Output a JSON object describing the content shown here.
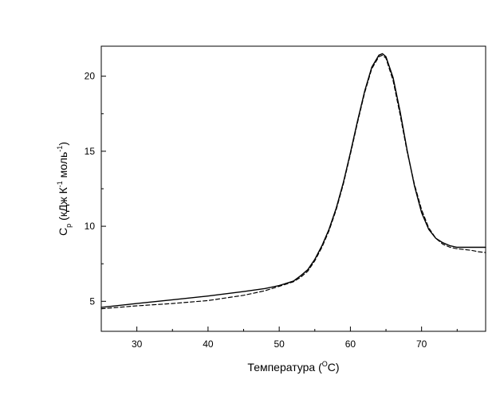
{
  "chart_data": {
    "type": "line",
    "xlabel": "Температура (",
    "xlabel_sup": "O",
    "xlabel_tail": "C)",
    "ylabel_main": "C",
    "ylabel_sub": "p",
    "ylabel_mid": " (кДж К",
    "ylabel_sup1": "-1",
    "ylabel_mid2": " моль",
    "ylabel_sup2": "-1",
    "ylabel_end": ")",
    "xlim": [
      25,
      79
    ],
    "ylim": [
      3.0,
      22.0
    ],
    "x_ticks": [
      30,
      40,
      50,
      60,
      70
    ],
    "y_ticks": [
      5,
      10,
      15,
      20
    ],
    "grid": false,
    "series": [
      {
        "style": "solid",
        "color": "#000000",
        "x": [
          25,
          30,
          35,
          40,
          45,
          48,
          50,
          52,
          53,
          54,
          55,
          56,
          57,
          58,
          59,
          60,
          61,
          62,
          63,
          64,
          64.5,
          65,
          66,
          67,
          68,
          69,
          70,
          71,
          72,
          73,
          74,
          75,
          76,
          77,
          78,
          79
        ],
        "y": [
          4.6,
          4.85,
          5.1,
          5.35,
          5.65,
          5.85,
          6.05,
          6.35,
          6.7,
          7.1,
          7.8,
          8.7,
          9.8,
          11.2,
          12.9,
          14.9,
          17.0,
          19.0,
          20.6,
          21.4,
          21.5,
          21.3,
          19.9,
          17.6,
          15.0,
          12.7,
          10.9,
          9.8,
          9.2,
          8.9,
          8.7,
          8.6,
          8.6,
          8.6,
          8.6,
          8.6
        ]
      },
      {
        "style": "dashed",
        "color": "#000000",
        "x": [
          25,
          30,
          35,
          40,
          45,
          48,
          50,
          52,
          53,
          54,
          55,
          56,
          57,
          58,
          59,
          60,
          61,
          62,
          63,
          64,
          64.5,
          65,
          66,
          67,
          68,
          69,
          70,
          71,
          72,
          73,
          74,
          75,
          76,
          77,
          78,
          79
        ],
        "y": [
          4.5,
          4.7,
          4.85,
          5.05,
          5.4,
          5.7,
          6.0,
          6.3,
          6.6,
          7.0,
          7.7,
          8.6,
          9.7,
          11.1,
          12.8,
          14.8,
          16.9,
          18.9,
          20.5,
          21.3,
          21.4,
          21.2,
          19.7,
          17.4,
          14.9,
          12.8,
          11.1,
          9.9,
          9.2,
          8.8,
          8.6,
          8.5,
          8.45,
          8.4,
          8.3,
          8.25
        ]
      }
    ]
  }
}
